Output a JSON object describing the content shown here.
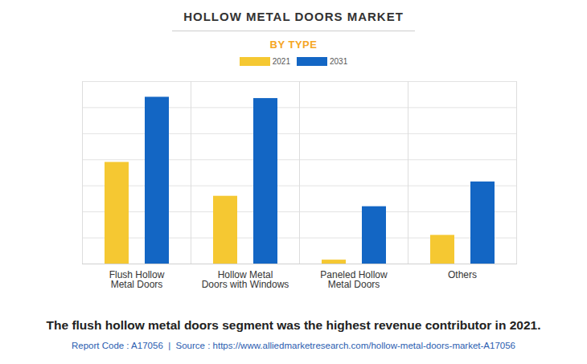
{
  "chart_data": {
    "type": "bar",
    "title": "HOLLOW METAL DOORS MARKET",
    "subtitle": "BY TYPE",
    "caption": "The flush hollow metal doors segment was the highest revenue contributor in 2021.",
    "source": "Report Code : A17056  |  Source : https://www.alliedmarketresearch.com/hollow-metal-doors-market-A17056",
    "categories": [
      "Flush Hollow Metal Doors",
      "Hollow Metal Doors with Windows",
      "Paneled Hollow Metal Doors",
      "Others"
    ],
    "series": [
      {
        "name": "2021",
        "color": "#f5c832",
        "values": [
          3.9,
          2.6,
          0.15,
          1.1
        ]
      },
      {
        "name": "2031",
        "color": "#1366c4",
        "values": [
          6.4,
          6.35,
          2.2,
          3.15
        ]
      }
    ],
    "ylim": [
      0,
      7
    ],
    "yticks": [
      0,
      1,
      2,
      3,
      4,
      5,
      6,
      7
    ],
    "grid": true,
    "legend": "top",
    "tick_labels": "x"
  }
}
